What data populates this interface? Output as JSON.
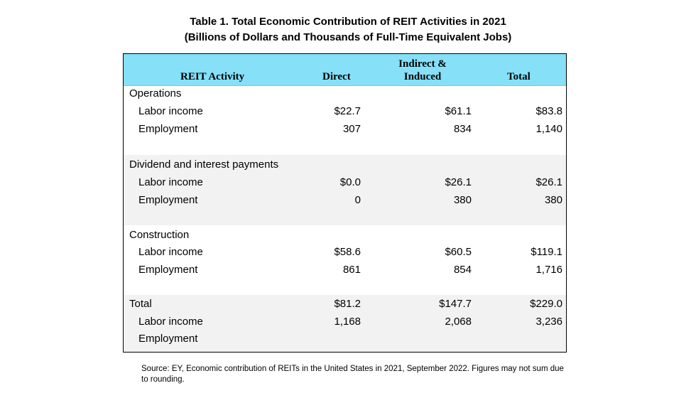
{
  "title": {
    "line1": "Table 1. Total Economic Contribution of REIT Activities in 2021",
    "line2": "(Billions of Dollars and Thousands of Full-Time Equivalent Jobs)"
  },
  "header": {
    "activity": "REIT Activity",
    "direct": "Direct",
    "indirect_line1": "Indirect &",
    "indirect_line2": "Induced",
    "total": "Total"
  },
  "groups": [
    {
      "name": "Operations",
      "rows": [
        {
          "label": "Labor income",
          "direct": "$22.7",
          "indirect": "$61.1",
          "total": "$83.8"
        },
        {
          "label": "Employment",
          "direct": "307",
          "indirect": "834",
          "total": "1,140"
        }
      ]
    },
    {
      "name": "Dividend and interest payments",
      "rows": [
        {
          "label": "Labor income",
          "direct": "$0.0",
          "indirect": "$26.1",
          "total": "$26.1"
        },
        {
          "label": "Employment",
          "direct": "0",
          "indirect": "380",
          "total": "380"
        }
      ]
    },
    {
      "name": "Construction",
      "rows": [
        {
          "label": "Labor income",
          "direct": "$58.6",
          "indirect": "$60.5",
          "total": "$119.1"
        },
        {
          "label": "Employment",
          "direct": "861",
          "indirect": "854",
          "total": "1,716"
        }
      ]
    },
    {
      "name": "Total",
      "name_values": {
        "direct": "$81.2",
        "indirect": "$147.7",
        "total": "$229.0"
      },
      "rows": [
        {
          "label": "Labor income",
          "direct": "1,168",
          "indirect": "2,068",
          "total": "3,236"
        },
        {
          "label": "Employment",
          "direct": "",
          "indirect": "",
          "total": ""
        }
      ]
    }
  ],
  "source": "Source: EY, Economic contribution of REITs in the United States in 2021, September 2022. Figures may not sum due to rounding.",
  "colors": {
    "header_bg": "#85e0f8",
    "shade_bg": "#f2f2f2"
  }
}
